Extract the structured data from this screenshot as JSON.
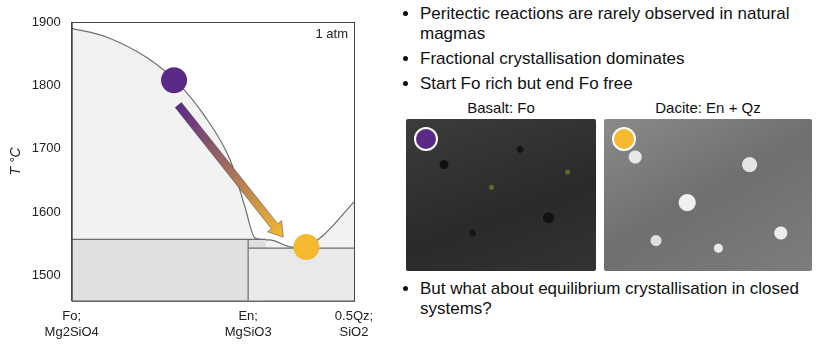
{
  "chart_data": {
    "type": "line",
    "annotation": "1 atm",
    "y_label": "T °C",
    "xlim": [
      0,
      1.6
    ],
    "xticks": [
      {
        "value": 0,
        "label": "Fo;\nMg2SiO4"
      },
      {
        "value": 1,
        "label": "En;\nMgSiO3"
      },
      {
        "value": 1.6,
        "label": "0.5Qz;\nSiO2"
      }
    ],
    "ylim": [
      1460,
      1900
    ],
    "yticks": [
      1500,
      1600,
      1700,
      1800,
      1900
    ],
    "grid": false,
    "series": [
      {
        "type": "line",
        "color": "#6e6e6e",
        "x": [
          0,
          0.2,
          0.43,
          0.6,
          0.75,
          0.9,
          0.98,
          1.04,
          1.12,
          1.24,
          1.3,
          1.42,
          1.6
        ],
        "values": [
          1890,
          1876,
          1843,
          1804,
          1753,
          1681,
          1610,
          1559,
          1556,
          1545,
          1543,
          1562,
          1616
        ]
      },
      {
        "type": "line",
        "color": "#6e6e6e",
        "x": [
          0,
          1.1
        ],
        "values": [
          1557,
          1557
        ]
      },
      {
        "type": "line",
        "color": "#6e6e6e",
        "x": [
          1,
          1.6
        ],
        "values": [
          1543,
          1543
        ]
      },
      {
        "type": "line",
        "color": "#6e6e6e",
        "x": [
          1,
          1
        ],
        "values": [
          1460,
          1557
        ]
      },
      {
        "type": "scatter",
        "color": "#5b2a86",
        "marker": "circle",
        "x": [
          0.58
        ],
        "values": [
          1808
        ]
      },
      {
        "type": "scatter",
        "color": "#f5b930",
        "marker": "circle",
        "x": [
          1.33
        ],
        "values": [
          1545
        ]
      }
    ]
  },
  "slide": {
    "bullets_top": [
      "Peritectic reactions are rarely observed in natural magmas",
      "Fractional crystallisation dominates",
      "Start Fo rich but end Fo free"
    ],
    "photos": [
      {
        "caption": "Basalt: Fo",
        "marker_color": "#5b2a86"
      },
      {
        "caption": "Dacite: En + Qz",
        "marker_color": "#f5b930"
      }
    ],
    "bullets_bottom": [
      "But what about equilibrium crystallisation in closed systems?"
    ]
  }
}
